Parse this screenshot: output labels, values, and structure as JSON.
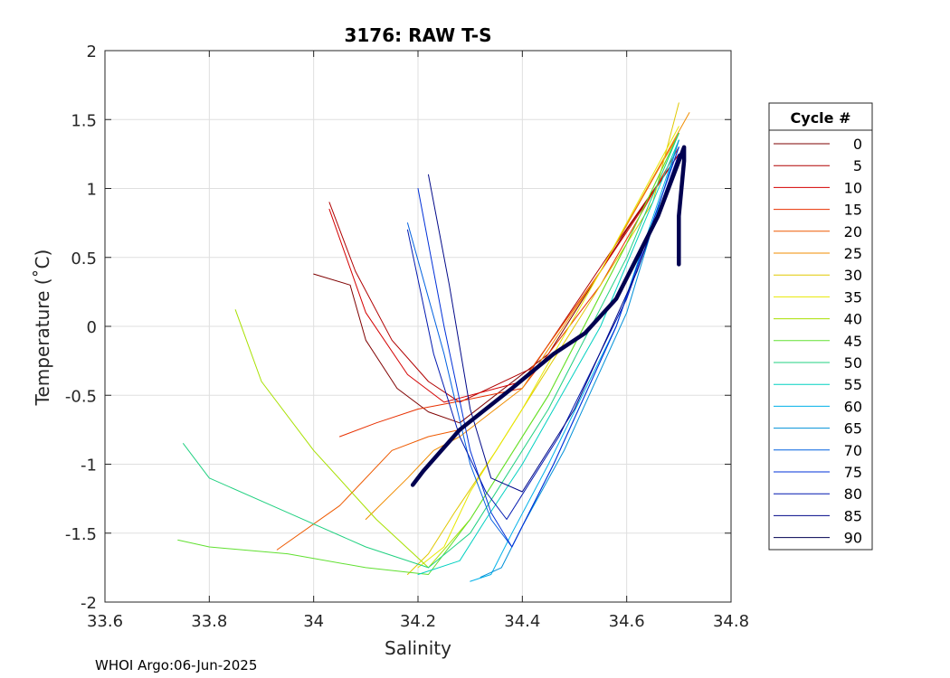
{
  "chart_data": {
    "type": "line",
    "title": "3176: RAW T-S",
    "xlabel": "Salinity",
    "ylabel": "Temperature (˚C)",
    "xlim": [
      33.6,
      34.8
    ],
    "ylim": [
      -2,
      2
    ],
    "xticks": [
      "33.6",
      "33.8",
      "34",
      "34.2",
      "34.4",
      "34.6",
      "34.8"
    ],
    "yticks": [
      "-2",
      "-1.5",
      "-1",
      "-0.5",
      "0",
      "0.5",
      "1",
      "1.5",
      "2"
    ],
    "grid": true,
    "legend": {
      "title": "Cycle #",
      "placement": "right-outside"
    },
    "footer": "WHOI Argo:06-Jun-2025",
    "series": [
      {
        "name": "0",
        "color": "#7f0000",
        "x": [
          34.0,
          34.07,
          34.1,
          34.16,
          34.22,
          34.28,
          34.45,
          34.6,
          34.7
        ],
        "y": [
          0.38,
          0.3,
          -0.1,
          -0.45,
          -0.62,
          -0.7,
          -0.2,
          0.7,
          1.25
        ]
      },
      {
        "name": "5",
        "color": "#b00000",
        "x": [
          34.03,
          34.08,
          34.15,
          34.22,
          34.28,
          34.42,
          34.58,
          34.7
        ],
        "y": [
          0.9,
          0.4,
          -0.1,
          -0.4,
          -0.55,
          -0.3,
          0.6,
          1.25
        ]
      },
      {
        "name": "10",
        "color": "#d40000",
        "x": [
          34.03,
          34.1,
          34.18,
          34.25,
          34.4,
          34.55,
          34.7
        ],
        "y": [
          0.85,
          0.1,
          -0.35,
          -0.55,
          -0.4,
          0.4,
          1.25
        ]
      },
      {
        "name": "15",
        "color": "#e83000",
        "x": [
          34.05,
          34.12,
          34.2,
          34.27,
          34.4,
          34.55,
          34.7
        ],
        "y": [
          -0.8,
          -0.7,
          -0.6,
          -0.55,
          -0.45,
          0.3,
          1.3
        ]
      },
      {
        "name": "20",
        "color": "#ee5a00",
        "x": [
          33.93,
          34.05,
          34.15,
          34.22,
          34.28,
          34.4,
          34.55,
          34.7
        ],
        "y": [
          -1.62,
          -1.3,
          -0.9,
          -0.8,
          -0.75,
          -0.4,
          0.4,
          1.4
        ]
      },
      {
        "name": "25",
        "color": "#f08c00",
        "x": [
          34.1,
          34.18,
          34.23,
          34.28,
          34.4,
          34.55,
          34.72
        ],
        "y": [
          -1.4,
          -1.1,
          -0.9,
          -0.8,
          -0.45,
          0.4,
          1.55
        ]
      },
      {
        "name": "30",
        "color": "#e0c800",
        "x": [
          34.18,
          34.22,
          34.27,
          34.35,
          34.5,
          34.65,
          34.7
        ],
        "y": [
          -1.8,
          -1.65,
          -1.35,
          -0.9,
          0.0,
          0.9,
          1.62
        ]
      },
      {
        "name": "35",
        "color": "#e8e800",
        "x": [
          34.2,
          34.25,
          34.3,
          34.4,
          34.55,
          34.7
        ],
        "y": [
          -1.75,
          -1.6,
          -1.2,
          -0.6,
          0.4,
          1.45
        ]
      },
      {
        "name": "40",
        "color": "#a8e000",
        "x": [
          33.85,
          33.9,
          34.0,
          34.12,
          34.22,
          34.3,
          34.45,
          34.6,
          34.7
        ],
        "y": [
          0.12,
          -0.4,
          -0.9,
          -1.4,
          -1.75,
          -1.4,
          -0.5,
          0.6,
          1.4
        ]
      },
      {
        "name": "45",
        "color": "#60e030",
        "x": [
          33.74,
          33.8,
          33.95,
          34.1,
          34.22,
          34.3,
          34.45,
          34.6,
          34.7
        ],
        "y": [
          -1.55,
          -1.6,
          -1.65,
          -1.75,
          -1.8,
          -1.4,
          -0.5,
          0.6,
          1.4
        ]
      },
      {
        "name": "50",
        "color": "#20d080",
        "x": [
          33.75,
          33.8,
          33.95,
          34.1,
          34.22,
          34.3,
          34.45,
          34.6,
          34.7
        ],
        "y": [
          -0.85,
          -1.1,
          -1.35,
          -1.6,
          -1.75,
          -1.5,
          -0.6,
          0.5,
          1.4
        ]
      },
      {
        "name": "55",
        "color": "#00d0c0",
        "x": [
          34.2,
          34.28,
          34.33,
          34.4,
          34.55,
          34.7
        ],
        "y": [
          -1.8,
          -1.7,
          -1.4,
          -1.0,
          0.0,
          1.35
        ]
      },
      {
        "name": "60",
        "color": "#00b0e8",
        "x": [
          34.3,
          34.34,
          34.38,
          34.45,
          34.58,
          34.7
        ],
        "y": [
          -1.85,
          -1.8,
          -1.5,
          -1.0,
          0.0,
          1.35
        ]
      },
      {
        "name": "65",
        "color": "#0090d8",
        "x": [
          34.32,
          34.36,
          34.4,
          34.48,
          34.6,
          34.7
        ],
        "y": [
          -1.82,
          -1.75,
          -1.45,
          -0.9,
          0.1,
          1.35
        ]
      },
      {
        "name": "70",
        "color": "#0060e0",
        "x": [
          34.18,
          34.25,
          34.3,
          34.34,
          34.38,
          34.46,
          34.58,
          34.7
        ],
        "y": [
          0.75,
          -0.2,
          -1.0,
          -1.4,
          -1.6,
          -1.0,
          0.0,
          1.3
        ]
      },
      {
        "name": "75",
        "color": "#0030d8",
        "x": [
          34.2,
          34.25,
          34.3,
          34.34,
          34.38,
          34.46,
          34.58,
          34.7
        ],
        "y": [
          1.0,
          0.0,
          -0.9,
          -1.35,
          -1.6,
          -1.0,
          0.0,
          1.3
        ]
      },
      {
        "name": "80",
        "color": "#0018b0",
        "x": [
          34.18,
          34.23,
          34.28,
          34.33,
          34.37,
          34.47,
          34.6,
          34.7
        ],
        "y": [
          0.7,
          -0.2,
          -0.8,
          -1.2,
          -1.4,
          -0.8,
          0.2,
          1.25
        ]
      },
      {
        "name": "85",
        "color": "#000888",
        "x": [
          34.22,
          34.26,
          34.3,
          34.34,
          34.4,
          34.5,
          34.62,
          34.7
        ],
        "y": [
          1.1,
          0.3,
          -0.6,
          -1.1,
          -1.2,
          -0.6,
          0.4,
          1.25
        ]
      },
      {
        "name": "90",
        "color": "#000050",
        "x": [
          34.19,
          34.21,
          34.28,
          34.38,
          34.46,
          34.52,
          34.58,
          34.66,
          34.71,
          34.71,
          34.7,
          34.7
        ],
        "y": [
          -1.15,
          -1.05,
          -0.75,
          -0.45,
          -0.2,
          -0.05,
          0.2,
          0.8,
          1.3,
          1.2,
          0.8,
          0.45
        ]
      }
    ]
  }
}
